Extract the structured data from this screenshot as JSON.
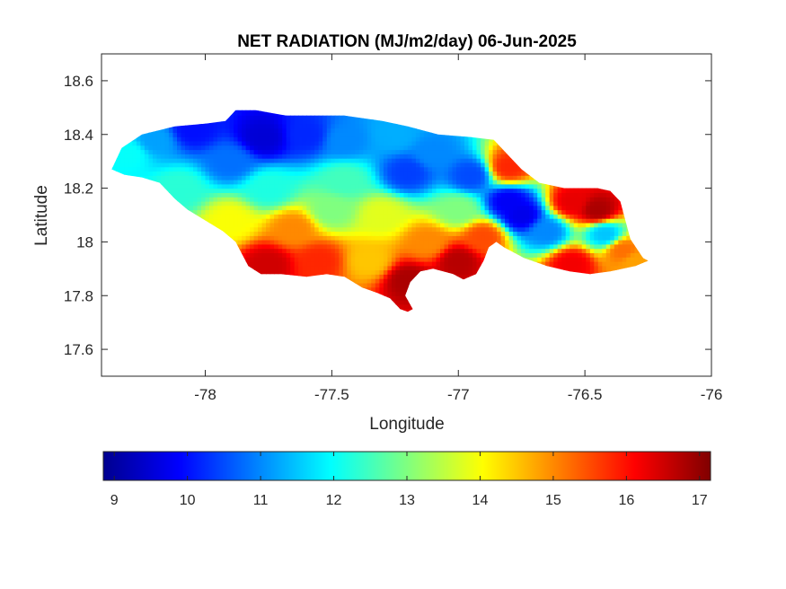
{
  "chart_data": {
    "type": "heatmap",
    "title": "NET RADIATION (MJ/m2/day) 06-Jun-2025",
    "xlabel": "Longitude",
    "ylabel": "Latitude",
    "xlim": [
      -78.41,
      -76
    ],
    "ylim": [
      17.5,
      18.7
    ],
    "xticks": [
      -78,
      -77.5,
      -77,
      -76.5,
      -76
    ],
    "yticks": [
      17.6,
      17.8,
      18,
      18.2,
      18.4,
      18.6
    ],
    "xtick_labels": [
      "-78",
      "-77.5",
      "-77",
      "-76.5",
      "-76"
    ],
    "ytick_labels": [
      "17.6",
      "17.8",
      "18",
      "18.2",
      "18.4",
      "18.6"
    ],
    "grid": false,
    "colormap": "jet",
    "colorbar": {
      "orientation": "horizontal",
      "placement": "below",
      "range": [
        8.85,
        17.15
      ],
      "ticks": [
        9,
        10,
        11,
        12,
        13,
        14,
        15,
        16,
        17
      ],
      "tick_labels": [
        "9",
        "10",
        "11",
        "12",
        "13",
        "14",
        "15",
        "16",
        "17"
      ]
    },
    "outline": [
      [
        -78.37,
        18.27
      ],
      [
        -78.33,
        18.35
      ],
      [
        -78.25,
        18.4
      ],
      [
        -78.12,
        18.43
      ],
      [
        -78.0,
        18.44
      ],
      [
        -77.92,
        18.45
      ],
      [
        -77.88,
        18.49
      ],
      [
        -77.8,
        18.49
      ],
      [
        -77.68,
        18.47
      ],
      [
        -77.58,
        18.47
      ],
      [
        -77.45,
        18.47
      ],
      [
        -77.3,
        18.45
      ],
      [
        -77.2,
        18.43
      ],
      [
        -77.08,
        18.4
      ],
      [
        -76.95,
        18.39
      ],
      [
        -76.86,
        18.38
      ],
      [
        -76.8,
        18.32
      ],
      [
        -76.75,
        18.27
      ],
      [
        -76.68,
        18.22
      ],
      [
        -76.58,
        18.2
      ],
      [
        -76.45,
        18.2
      ],
      [
        -76.4,
        18.19
      ],
      [
        -76.36,
        18.15
      ],
      [
        -76.34,
        18.08
      ],
      [
        -76.32,
        18.01
      ],
      [
        -76.27,
        17.94
      ],
      [
        -76.25,
        17.93
      ],
      [
        -76.3,
        17.91
      ],
      [
        -76.4,
        17.89
      ],
      [
        -76.48,
        17.88
      ],
      [
        -76.56,
        17.89
      ],
      [
        -76.65,
        17.91
      ],
      [
        -76.74,
        17.94
      ],
      [
        -76.82,
        17.98
      ],
      [
        -76.85,
        18.0
      ],
      [
        -76.88,
        17.98
      ],
      [
        -76.9,
        17.93
      ],
      [
        -76.93,
        17.88
      ],
      [
        -76.98,
        17.86
      ],
      [
        -77.02,
        17.88
      ],
      [
        -77.06,
        17.89
      ],
      [
        -77.1,
        17.9
      ],
      [
        -77.15,
        17.89
      ],
      [
        -77.19,
        17.85
      ],
      [
        -77.21,
        17.8
      ],
      [
        -77.18,
        17.75
      ],
      [
        -77.2,
        17.74
      ],
      [
        -77.23,
        17.75
      ],
      [
        -77.27,
        17.79
      ],
      [
        -77.32,
        17.81
      ],
      [
        -77.38,
        17.83
      ],
      [
        -77.45,
        17.87
      ],
      [
        -77.52,
        17.88
      ],
      [
        -77.6,
        17.87
      ],
      [
        -77.7,
        17.88
      ],
      [
        -77.78,
        17.88
      ],
      [
        -77.83,
        17.91
      ],
      [
        -77.88,
        18.0
      ],
      [
        -77.93,
        18.04
      ],
      [
        -78.0,
        18.08
      ],
      [
        -78.07,
        18.12
      ],
      [
        -78.12,
        18.16
      ],
      [
        -78.18,
        18.22
      ],
      [
        -78.25,
        18.24
      ],
      [
        -78.32,
        18.25
      ]
    ],
    "value_field_anchors": [
      {
        "lon": -78.3,
        "lat": 18.33,
        "value": 12.0
      },
      {
        "lon": -78.2,
        "lat": 18.38,
        "value": 11.2
      },
      {
        "lon": -78.05,
        "lat": 18.42,
        "value": 10.0
      },
      {
        "lon": -77.9,
        "lat": 18.3,
        "value": 10.8
      },
      {
        "lon": -77.77,
        "lat": 18.39,
        "value": 9.5
      },
      {
        "lon": -77.6,
        "lat": 18.4,
        "value": 10.2
      },
      {
        "lon": -77.45,
        "lat": 18.38,
        "value": 11.0
      },
      {
        "lon": -77.25,
        "lat": 18.4,
        "value": 11.3
      },
      {
        "lon": -77.1,
        "lat": 18.33,
        "value": 11.0
      },
      {
        "lon": -77.2,
        "lat": 18.26,
        "value": 10.4
      },
      {
        "lon": -76.95,
        "lat": 18.25,
        "value": 10.5
      },
      {
        "lon": -76.8,
        "lat": 18.15,
        "value": 9.8
      },
      {
        "lon": -76.75,
        "lat": 18.1,
        "value": 9.7
      },
      {
        "lon": -76.65,
        "lat": 18.04,
        "value": 11.0
      },
      {
        "lon": -76.55,
        "lat": 18.15,
        "value": 16.3
      },
      {
        "lon": -76.45,
        "lat": 18.12,
        "value": 16.8
      },
      {
        "lon": -76.42,
        "lat": 18.03,
        "value": 11.5
      },
      {
        "lon": -76.35,
        "lat": 17.97,
        "value": 15.2
      },
      {
        "lon": -76.55,
        "lat": 17.92,
        "value": 16.2
      },
      {
        "lon": -76.8,
        "lat": 18.28,
        "value": 15.8
      },
      {
        "lon": -76.9,
        "lat": 18.02,
        "value": 15.5
      },
      {
        "lon": -77.0,
        "lat": 17.93,
        "value": 16.7
      },
      {
        "lon": -77.12,
        "lat": 18.0,
        "value": 15.0
      },
      {
        "lon": -77.2,
        "lat": 17.86,
        "value": 16.8
      },
      {
        "lon": -77.35,
        "lat": 17.93,
        "value": 14.5
      },
      {
        "lon": -77.55,
        "lat": 17.93,
        "value": 15.8
      },
      {
        "lon": -77.75,
        "lat": 17.92,
        "value": 16.5
      },
      {
        "lon": -77.65,
        "lat": 18.05,
        "value": 15.0
      },
      {
        "lon": -77.9,
        "lat": 18.08,
        "value": 14.0
      },
      {
        "lon": -77.5,
        "lat": 18.12,
        "value": 13.0
      },
      {
        "lon": -77.75,
        "lat": 18.2,
        "value": 12.2
      },
      {
        "lon": -77.3,
        "lat": 18.1,
        "value": 13.8
      },
      {
        "lon": -77.0,
        "lat": 18.12,
        "value": 13.0
      },
      {
        "lon": -78.1,
        "lat": 18.2,
        "value": 12.3
      },
      {
        "lon": -77.45,
        "lat": 18.23,
        "value": 12.5
      },
      {
        "lon": -76.3,
        "lat": 17.93,
        "value": 14.8
      }
    ]
  }
}
